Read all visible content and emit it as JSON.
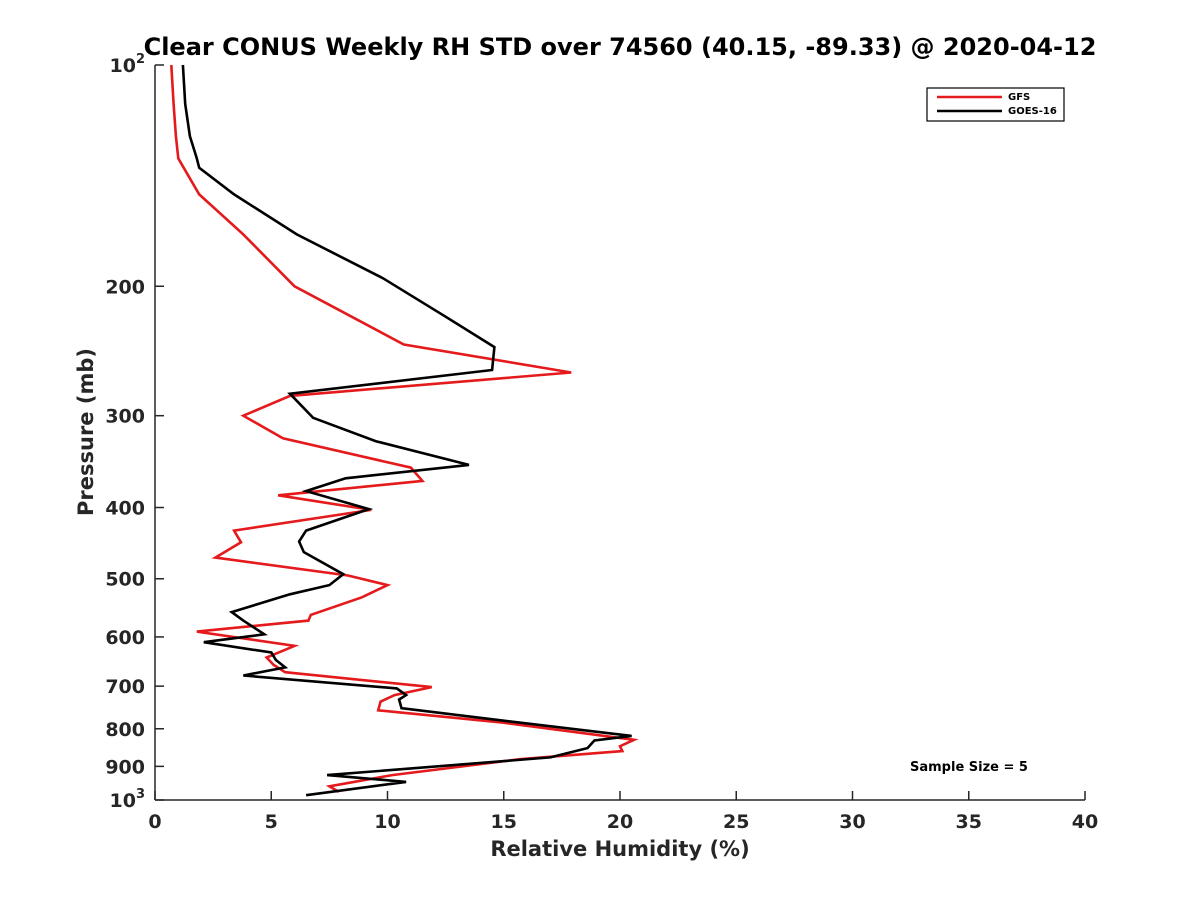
{
  "chart_data": {
    "type": "line",
    "title": "Clear CONUS Weekly RH STD over 74560 (40.15, -89.33) @ 2020-04-12",
    "xlabel": "Relative Humidity (%)",
    "ylabel": "Pressure (mb)",
    "xlim": [
      0,
      40
    ],
    "ylim": [
      100,
      1000
    ],
    "yscale": "log",
    "y_reversed": true,
    "grid": false,
    "legend_position": "top-right",
    "x_ticks": [
      "0",
      "5",
      "10",
      "15",
      "20",
      "25",
      "30",
      "35",
      "40"
    ],
    "y_ticks": [
      {
        "value": 100,
        "base": "10",
        "exp": "2"
      },
      {
        "value": 200,
        "label": "200"
      },
      {
        "value": 300,
        "label": "300"
      },
      {
        "value": 400,
        "label": "400"
      },
      {
        "value": 500,
        "label": "500"
      },
      {
        "value": 600,
        "label": "600"
      },
      {
        "value": 700,
        "label": "700"
      },
      {
        "value": 800,
        "label": "800"
      },
      {
        "value": 900,
        "label": "900"
      },
      {
        "value": 1000,
        "base": "10",
        "exp": "3"
      }
    ],
    "annotation": "Sample Size = 5",
    "series": [
      {
        "name": "GFS",
        "color": "#e41a1c",
        "x": [
          0.7,
          0.8,
          0.9,
          1.0,
          1.9,
          3.8,
          6.0,
          10.7,
          17.9,
          5.8,
          3.8,
          5.5,
          11.0,
          11.5,
          5.3,
          9.3,
          3.4,
          3.7,
          2.6,
          8.3,
          10.0,
          8.9,
          6.7,
          6.6,
          1.8,
          6.0,
          4.8,
          5.1,
          5.6,
          11.9,
          10.3,
          9.7,
          9.6,
          15.0,
          20.6,
          20.0,
          20.1,
          15.7,
          10.2,
          7.5,
          7.9
        ],
        "y": [
          100,
          113,
          125,
          134,
          150,
          170,
          200,
          240,
          262,
          282,
          300,
          322,
          353,
          368,
          385,
          403,
          430,
          446,
          468,
          495,
          510,
          530,
          560,
          570,
          590,
          617,
          640,
          655,
          670,
          702,
          720,
          735,
          755,
          785,
          828,
          845,
          858,
          880,
          925,
          958,
          975
        ]
      },
      {
        "name": "GOES-16",
        "color": "#000000",
        "x": [
          1.2,
          1.3,
          1.5,
          1.8,
          1.9,
          3.4,
          6.1,
          9.8,
          12.5,
          14.6,
          14.5,
          5.8,
          6.8,
          9.5,
          13.5,
          8.2,
          6.5,
          9.2,
          6.5,
          6.2,
          6.4,
          8.1,
          7.5,
          5.8,
          3.3,
          3.8,
          4.7,
          2.1,
          5.0,
          5.2,
          5.6,
          3.8,
          10.4,
          10.8,
          10.5,
          10.6,
          15.0,
          20.5,
          18.9,
          18.6,
          17.0,
          7.4,
          10.8,
          6.5
        ],
        "y": [
          100,
          113,
          125,
          134,
          138,
          150,
          170,
          195,
          220,
          242,
          260,
          280,
          302,
          325,
          350,
          365,
          380,
          402,
          430,
          445,
          460,
          493,
          510,
          525,
          555,
          570,
          595,
          610,
          630,
          645,
          660,
          677,
          705,
          720,
          730,
          750,
          780,
          818,
          830,
          850,
          875,
          925,
          945,
          985
        ]
      }
    ]
  }
}
